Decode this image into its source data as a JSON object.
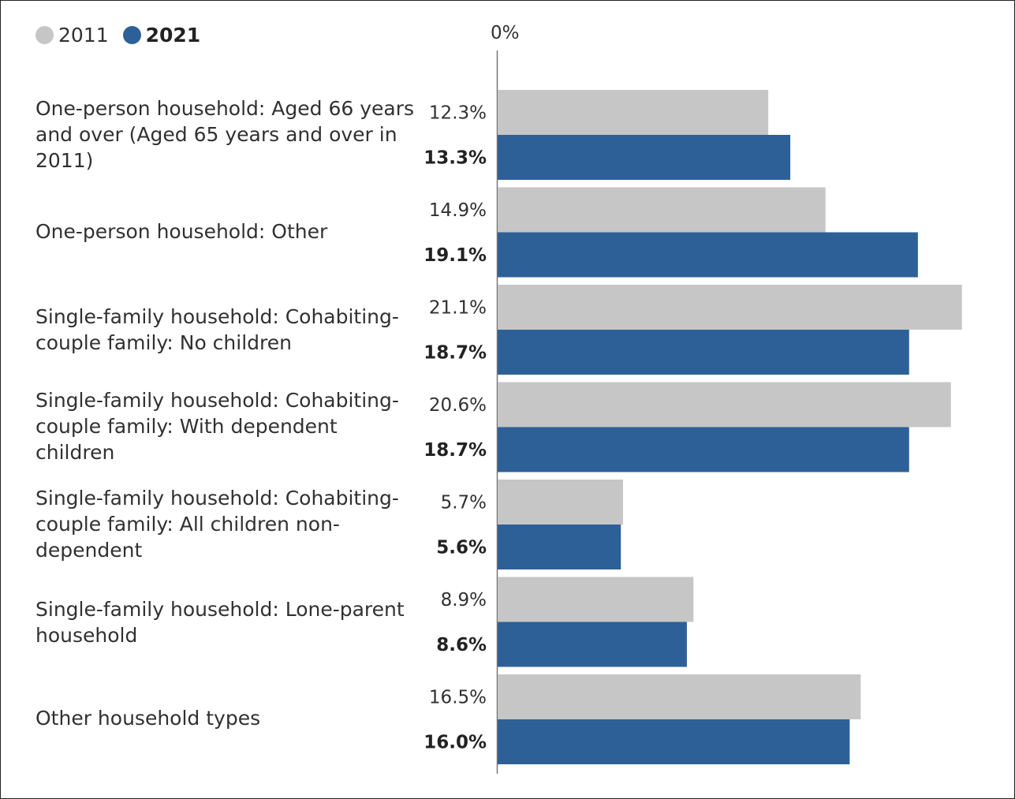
{
  "chart_data": {
    "type": "bar",
    "orientation": "horizontal",
    "categories": [
      "One-person household: Aged 66 years and over (Aged 65 years and over in 2011)",
      "One-person household: Other",
      "Single-family household: Cohabiting-couple family: No children",
      "Single-family household: Cohabiting-couple family: With dependent children",
      "Single-family household: Cohabiting-couple family: All children non-dependent",
      "Single-family household: Lone-parent household",
      "Other household types"
    ],
    "series": [
      {
        "name": "2011",
        "color": "#c6c6c6",
        "values": [
          12.3,
          14.9,
          21.1,
          20.6,
          5.7,
          8.9,
          16.5
        ],
        "labels": [
          "12.3%",
          "14.9%",
          "21.1%",
          "20.6%",
          "5.7%",
          "8.9%",
          "16.5%"
        ]
      },
      {
        "name": "2021",
        "color": "#2e6098",
        "values": [
          13.3,
          19.1,
          18.7,
          18.7,
          5.6,
          8.6,
          16.0
        ],
        "labels": [
          "13.3%",
          "19.1%",
          "18.7%",
          "18.7%",
          "5.6%",
          "8.6%",
          "16.0%"
        ]
      }
    ],
    "axis_tick_label": "0%",
    "xlim": [
      0,
      22
    ],
    "grid": false,
    "legend_placement": "top-left"
  }
}
